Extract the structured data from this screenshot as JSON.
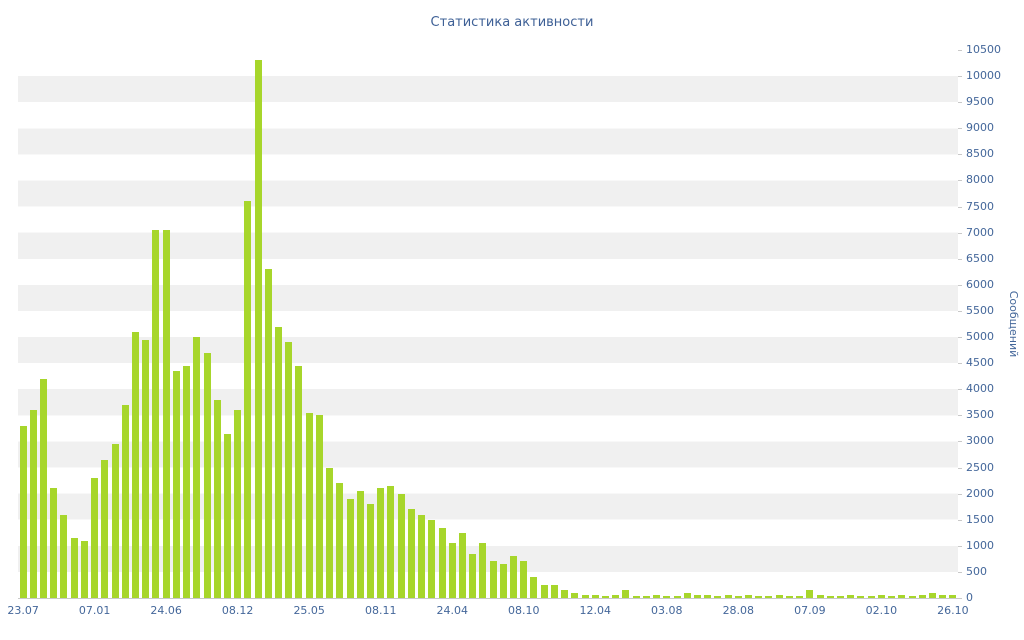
{
  "colors": {
    "bar": "#a7d62b",
    "text": "#44679a",
    "title": "#3e6096",
    "band": "#f0f0f0",
    "band_alt": "#ffffff",
    "axis_line": "#c9c9c9"
  },
  "chart_data": {
    "type": "bar",
    "title": "Статистика активности",
    "xlabel": "",
    "ylabel": "Сообщений",
    "ylim": [
      0,
      10500
    ],
    "y_tick_step": 500,
    "grid": "horizontal-alternating-bands",
    "legend": "none",
    "y_axis_position": "right",
    "x_tick_labels": [
      {
        "index": 0,
        "label": "23.07"
      },
      {
        "index": 7,
        "label": "07.01"
      },
      {
        "index": 14,
        "label": "24.06"
      },
      {
        "index": 21,
        "label": "08.12"
      },
      {
        "index": 28,
        "label": "25.05"
      },
      {
        "index": 35,
        "label": "08.11"
      },
      {
        "index": 42,
        "label": "24.04"
      },
      {
        "index": 49,
        "label": "08.10"
      },
      {
        "index": 56,
        "label": "12.04"
      },
      {
        "index": 63,
        "label": "03.08"
      },
      {
        "index": 70,
        "label": "28.08"
      },
      {
        "index": 77,
        "label": "07.09"
      },
      {
        "index": 84,
        "label": "02.10"
      },
      {
        "index": 91,
        "label": "26.10"
      }
    ],
    "values": [
      3300,
      3600,
      4200,
      2100,
      1600,
      1150,
      1100,
      2300,
      2650,
      2950,
      3700,
      5100,
      4950,
      7050,
      7050,
      4350,
      4450,
      5000,
      4700,
      3800,
      3150,
      3600,
      7600,
      10300,
      6300,
      5200,
      4900,
      4450,
      3550,
      3500,
      2500,
      2200,
      1900,
      2050,
      1800,
      2100,
      2150,
      2000,
      1700,
      1600,
      1500,
      1350,
      1050,
      1250,
      850,
      1050,
      700,
      650,
      800,
      700,
      400,
      250,
      250,
      150,
      100,
      60,
      60,
      40,
      60,
      150,
      40,
      40,
      60,
      40,
      40,
      100,
      60,
      60,
      40,
      60,
      40,
      60,
      40,
      40,
      60,
      40,
      40,
      150,
      60,
      40,
      40,
      60,
      40,
      40,
      60,
      40,
      60,
      40,
      60,
      100,
      60,
      60
    ]
  }
}
